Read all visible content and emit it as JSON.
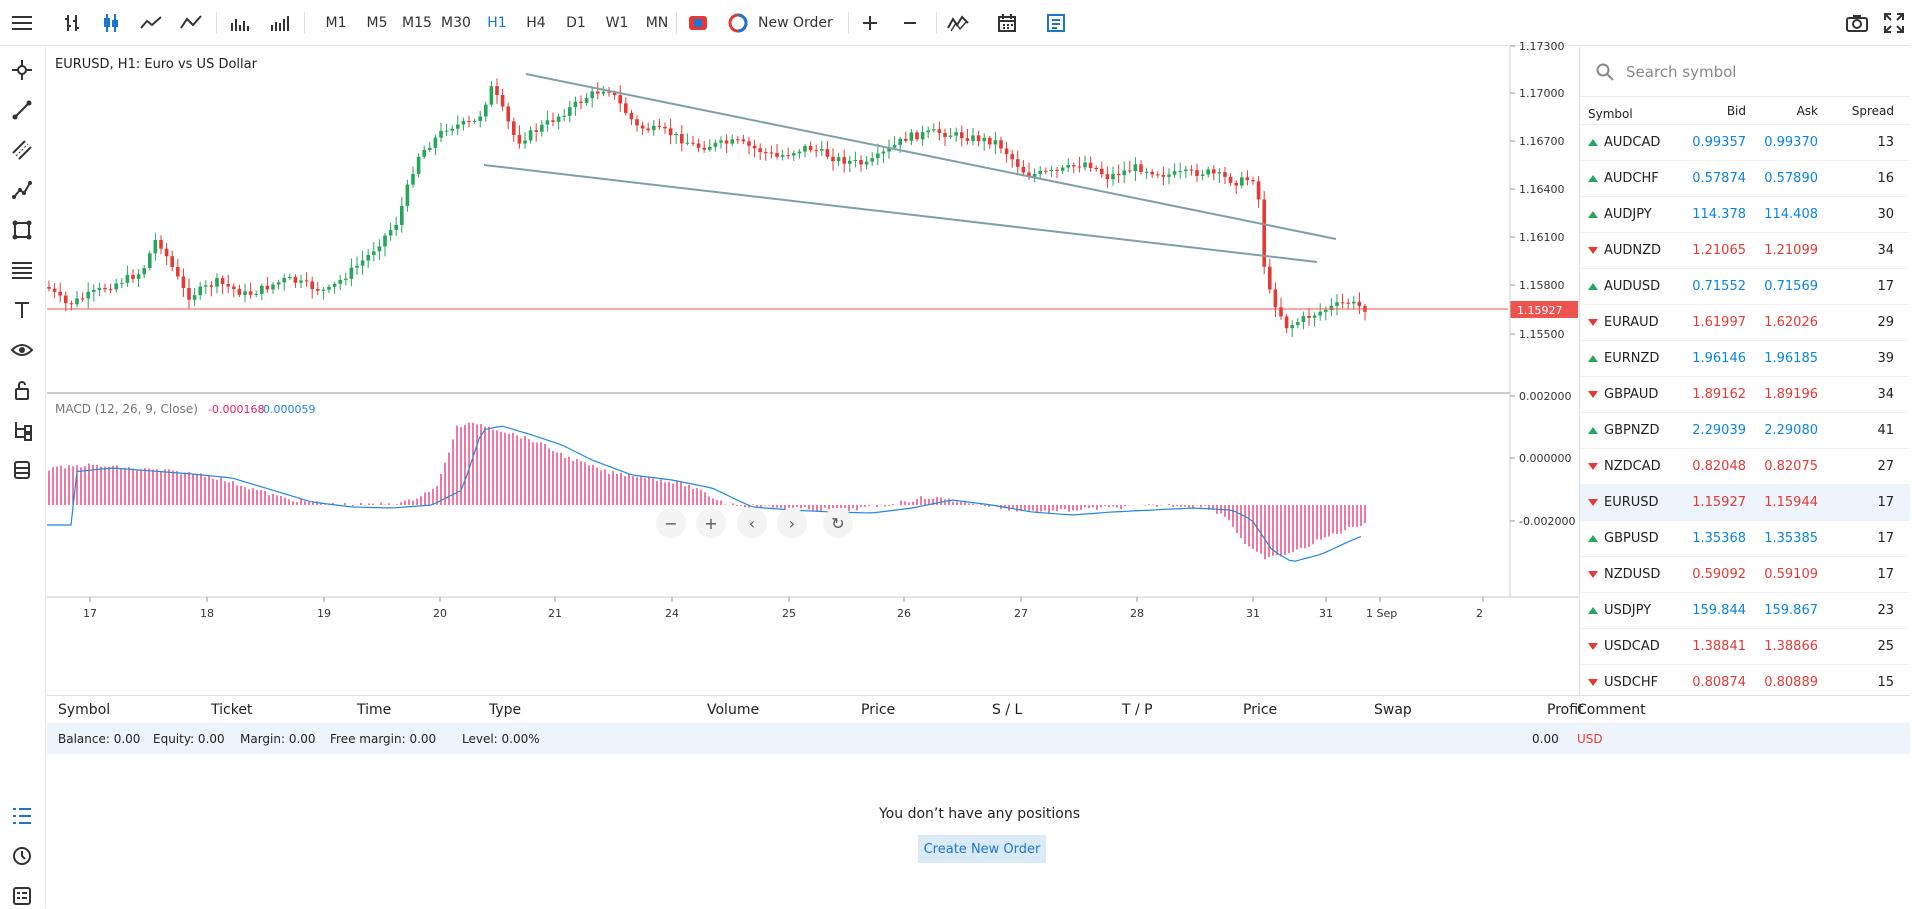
{
  "toolbar": {
    "timeframes": [
      "M1",
      "M5",
      "M15",
      "M30",
      "H1",
      "H4",
      "D1",
      "W1",
      "MN"
    ],
    "active_timeframe": "H1",
    "new_order_label": "New Order"
  },
  "chart": {
    "title": "EURUSD, H1: Euro vs US Dollar",
    "price_ticks": [
      "1.17300",
      "1.17000",
      "1.16700",
      "1.16400",
      "1.16100",
      "1.15800",
      "1.15500"
    ],
    "current_price": "1.15927",
    "macd_label": "MACD (12, 26, 9, Close)",
    "macd_main": "-0.000168",
    "macd_signal": "0.000059",
    "macd_ticks": [
      "0.002000",
      "0.000000",
      "-0.002000"
    ],
    "x_ticks": [
      "17",
      "18",
      "19",
      "20",
      "21",
      "24",
      "25",
      "26",
      "27",
      "28",
      "31",
      "31",
      "1 Sep",
      "2"
    ],
    "colors": {
      "bull": "#26a65b",
      "bear": "#e53935",
      "macd_hist": "#e91e63",
      "macd_signal": "#1e88e5",
      "trendline": "#7fa0a8",
      "price_line": "#ef5350"
    }
  },
  "watchlist": {
    "search_placeholder": "Search symbol",
    "headers": {
      "symbol": "Symbol",
      "bid": "Bid",
      "ask": "Ask",
      "spread": "Spread"
    },
    "rows": [
      {
        "dir": "up",
        "symbol": "AUDCAD",
        "bid": "0.99357",
        "ask": "0.99370",
        "spread": "13"
      },
      {
        "dir": "up",
        "symbol": "AUDCHF",
        "bid": "0.57874",
        "ask": "0.57890",
        "spread": "16"
      },
      {
        "dir": "up",
        "symbol": "AUDJPY",
        "bid": "114.378",
        "ask": "114.408",
        "spread": "30"
      },
      {
        "dir": "dn",
        "symbol": "AUDNZD",
        "bid": "1.21065",
        "ask": "1.21099",
        "spread": "34"
      },
      {
        "dir": "up",
        "symbol": "AUDUSD",
        "bid": "0.71552",
        "ask": "0.71569",
        "spread": "17"
      },
      {
        "dir": "dn",
        "symbol": "EURAUD",
        "bid": "1.61997",
        "ask": "1.62026",
        "spread": "29"
      },
      {
        "dir": "up",
        "symbol": "EURNZD",
        "bid": "1.96146",
        "ask": "1.96185",
        "spread": "39"
      },
      {
        "dir": "dn",
        "symbol": "GBPAUD",
        "bid": "1.89162",
        "ask": "1.89196",
        "spread": "34"
      },
      {
        "dir": "up",
        "symbol": "GBPNZD",
        "bid": "2.29039",
        "ask": "2.29080",
        "spread": "41"
      },
      {
        "dir": "dn",
        "symbol": "NZDCAD",
        "bid": "0.82048",
        "ask": "0.82075",
        "spread": "27"
      },
      {
        "dir": "dn",
        "symbol": "EURUSD",
        "bid": "1.15927",
        "ask": "1.15944",
        "spread": "17",
        "selected": true
      },
      {
        "dir": "up",
        "symbol": "GBPUSD",
        "bid": "1.35368",
        "ask": "1.35385",
        "spread": "17"
      },
      {
        "dir": "dn",
        "symbol": "NZDUSD",
        "bid": "0.59092",
        "ask": "0.59109",
        "spread": "17"
      },
      {
        "dir": "up",
        "symbol": "USDJPY",
        "bid": "159.844",
        "ask": "159.867",
        "spread": "23"
      },
      {
        "dir": "dn",
        "symbol": "USDCAD",
        "bid": "1.38841",
        "ask": "1.38866",
        "spread": "25"
      },
      {
        "dir": "dn",
        "symbol": "USDCHF",
        "bid": "0.80874",
        "ask": "0.80889",
        "spread": "15"
      }
    ]
  },
  "positions": {
    "headers": [
      "Symbol",
      "Ticket",
      "Time",
      "Type",
      "Volume",
      "Price",
      "S / L",
      "T / P",
      "Price",
      "Swap",
      "Profit",
      "Comment"
    ],
    "balance": "Balance: 0.00",
    "equity": "Equity: 0.00",
    "margin": "Margin: 0.00",
    "free_margin": "Free margin: 0.00",
    "level": "Level: 0.00%",
    "profit": "0.00",
    "currency": "USD",
    "empty_message": "You don’t have any positions",
    "create_button": "Create New Order"
  }
}
